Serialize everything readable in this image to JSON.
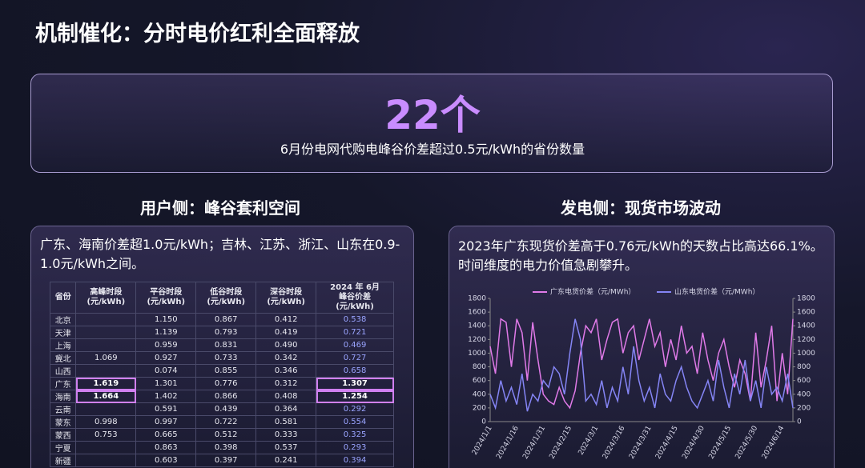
{
  "header": {
    "title": "机制催化：分时电价红利全面释放"
  },
  "banner": {
    "number": "22个",
    "caption": "6月份电网代购电峰谷价差超过0.5元/kWh的省份数量"
  },
  "user_side": {
    "heading": "用户侧：峰谷套利空间",
    "note": "广东、海南价差超1.0元/kWh；吉林、江苏、浙江、山东在0.9-1.0元/kWh之间。",
    "table": {
      "columns": [
        "省份",
        "高峰时段\n(元/kWh)",
        "平谷时段\n(元/kWh)",
        "低谷时段\n(元/kWh)",
        "深谷时段\n(元/kWh)",
        "2024 年 6月\n峰谷价差\n(元/kWh)"
      ],
      "rows": [
        [
          "北京",
          null,
          "1.150",
          "0.867",
          "0.412",
          "0.538"
        ],
        [
          "天津",
          null,
          "1.139",
          "0.793",
          "0.419",
          "0.721"
        ],
        [
          "上海",
          null,
          "0.959",
          "0.831",
          "0.490",
          "0.469"
        ],
        [
          "冀北",
          "1.069",
          "0.927",
          "0.733",
          "0.342",
          "0.727"
        ],
        [
          "山西",
          null,
          "0.074",
          "0.855",
          "0.346",
          "0.658"
        ],
        [
          "广东",
          "1.619",
          "1.301",
          "0.776",
          "0.312",
          "1.307"
        ],
        [
          "海南",
          "1.664",
          "1.402",
          "0.866",
          "0.408",
          "1.254"
        ],
        [
          "云南",
          null,
          "0.591",
          "0.439",
          "0.364",
          "0.292"
        ],
        [
          "蒙东",
          "0.998",
          "0.997",
          "0.722",
          "0.581",
          "0.554"
        ],
        [
          "蒙西",
          "0.753",
          "0.665",
          "0.512",
          "0.333",
          "0.325"
        ],
        [
          "宁夏",
          null,
          "0.863",
          "0.398",
          "0.537",
          "0.293"
        ],
        [
          "新疆",
          null,
          "0.603",
          "0.397",
          "0.241",
          "0.394"
        ]
      ]
    }
  },
  "generator_side": {
    "heading": "发电侧：现货市场波动",
    "note": "2023年广东现货价差高于0.76元/kWh的天数占比高达66.1%。时间维度的电力价值急剧攀升。",
    "chart_data": {
      "type": "line",
      "categories": [
        "2024/1/1",
        null,
        null,
        null,
        null,
        "2024/1/16",
        null,
        null,
        null,
        null,
        "2024/1/31",
        null,
        null,
        null,
        null,
        "2024/2/15",
        null,
        null,
        null,
        null,
        "2024/3/1",
        null,
        null,
        null,
        null,
        "2024/3/16",
        null,
        null,
        null,
        null,
        "2024/3/31",
        null,
        null,
        null,
        null,
        "2024/4/15",
        null,
        null,
        null,
        null,
        "2024/4/30",
        null,
        null,
        null,
        null,
        "2024/5/15",
        null,
        null,
        null,
        null,
        "2024/5/30",
        null,
        null,
        null,
        null,
        "2024/6/14",
        null,
        null
      ],
      "series": [
        {
          "name": "广东电货价差（元/MWh）",
          "color": "#e07ae8",
          "values": [
            1100,
            700,
            1500,
            1450,
            800,
            1500,
            1300,
            600,
            1450,
            900,
            400,
            300,
            250,
            500,
            300,
            200,
            450,
            1000,
            1400,
            1300,
            1500,
            900,
            1200,
            1450,
            1500,
            1000,
            1300,
            1400,
            900,
            1200,
            1500,
            1100,
            1300,
            800,
            1200,
            900,
            1400,
            1000,
            1100,
            700,
            1300,
            900,
            600,
            1000,
            1200,
            800,
            500,
            900,
            700,
            300,
            1300,
            500,
            900,
            1400,
            300,
            1000,
            400,
            1500
          ]
        },
        {
          "name": "山东电货价差（元/MWh）",
          "color": "#8585f5",
          "values": [
            400,
            200,
            600,
            300,
            500,
            250,
            700,
            150,
            400,
            300,
            600,
            500,
            800,
            700,
            400,
            1000,
            1500,
            1200,
            300,
            400,
            250,
            600,
            200,
            500,
            300,
            800,
            400,
            1100,
            600,
            300,
            500,
            200,
            700,
            400,
            300,
            600,
            800,
            500,
            300,
            200,
            400,
            600,
            300,
            900,
            500,
            200,
            700,
            400,
            900,
            300,
            600,
            200,
            800,
            400,
            500,
            300,
            700,
            200
          ]
        }
      ],
      "ylim": [
        0,
        1800
      ],
      "yticks": [
        0,
        200,
        400,
        600,
        800,
        1000,
        1200,
        1400,
        1600,
        1800
      ],
      "y2lim": [
        0,
        1800
      ],
      "y2ticks": [
        0,
        200,
        400,
        600,
        800,
        1000,
        1200,
        1400,
        1600,
        1800
      ],
      "grid": false
    }
  }
}
